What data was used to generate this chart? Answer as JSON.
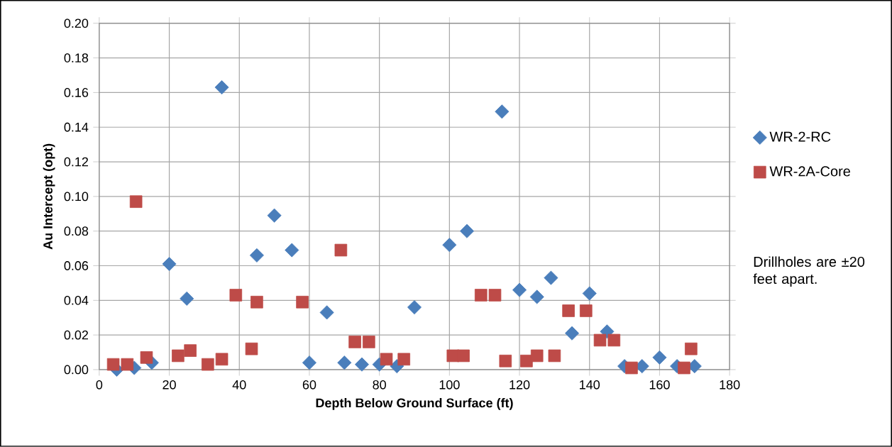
{
  "chart_data": {
    "type": "scatter",
    "xlabel": "Depth Below Ground Surface (ft)",
    "ylabel": "Au Intercept (opt)",
    "xlim": [
      0,
      180
    ],
    "xticks": [
      0,
      20,
      40,
      60,
      80,
      100,
      120,
      140,
      160,
      180
    ],
    "ylim": [
      0,
      0.2
    ],
    "yticks": [
      {
        "value": 0,
        "label": "0.00"
      },
      {
        "value": 0.02,
        "label": "0.02"
      },
      {
        "value": 0.04,
        "label": "0.04"
      },
      {
        "value": 0.06,
        "label": "0.06"
      },
      {
        "value": 0.08,
        "label": "0.08"
      },
      {
        "value": 0.1,
        "label": "0.10"
      },
      {
        "value": 0.12,
        "label": "0.12"
      },
      {
        "value": 0.14,
        "label": "0.14"
      },
      {
        "value": 0.16,
        "label": "0.16"
      },
      {
        "value": 0.18,
        "label": "0.18"
      },
      {
        "value": 0.2,
        "label": "0.20"
      }
    ],
    "grid": true,
    "legend": "right",
    "annotations": [
      "Drillholes are ±20 feet apart."
    ],
    "series": [
      {
        "name": "WR-2-RC",
        "color": "#4a7ebb",
        "marker": "diamond",
        "x": [
          5,
          10,
          15,
          20,
          25,
          35,
          45,
          50,
          55,
          60,
          65,
          70,
          75,
          80,
          85,
          90,
          100,
          105,
          115,
          120,
          125,
          129,
          135,
          140,
          145,
          150,
          155,
          160,
          165,
          170
        ],
        "values": [
          0.0,
          0.001,
          0.004,
          0.061,
          0.041,
          0.163,
          0.066,
          0.089,
          0.069,
          0.004,
          0.033,
          0.004,
          0.003,
          0.003,
          0.002,
          0.036,
          0.072,
          0.08,
          0.149,
          0.046,
          0.042,
          0.053,
          0.021,
          0.044,
          0.022,
          0.002,
          0.002,
          0.007,
          0.002,
          0.002
        ]
      },
      {
        "name": "WR-2A-Core",
        "color": "#be4b48",
        "marker": "square",
        "x": [
          4,
          8,
          10.5,
          13.5,
          22.5,
          26,
          31,
          35,
          39,
          43.5,
          45,
          58,
          69,
          73,
          77,
          82,
          87,
          101,
          104,
          109,
          113,
          116,
          122,
          125,
          130,
          134,
          139,
          143,
          147,
          152,
          167,
          169
        ],
        "values": [
          0.003,
          0.003,
          0.097,
          0.007,
          0.008,
          0.011,
          0.003,
          0.006,
          0.043,
          0.012,
          0.039,
          0.039,
          0.069,
          0.016,
          0.016,
          0.006,
          0.006,
          0.008,
          0.008,
          0.043,
          0.043,
          0.005,
          0.005,
          0.008,
          0.008,
          0.034,
          0.034,
          0.017,
          0.017,
          0.001,
          0.001,
          0.012
        ]
      }
    ]
  }
}
